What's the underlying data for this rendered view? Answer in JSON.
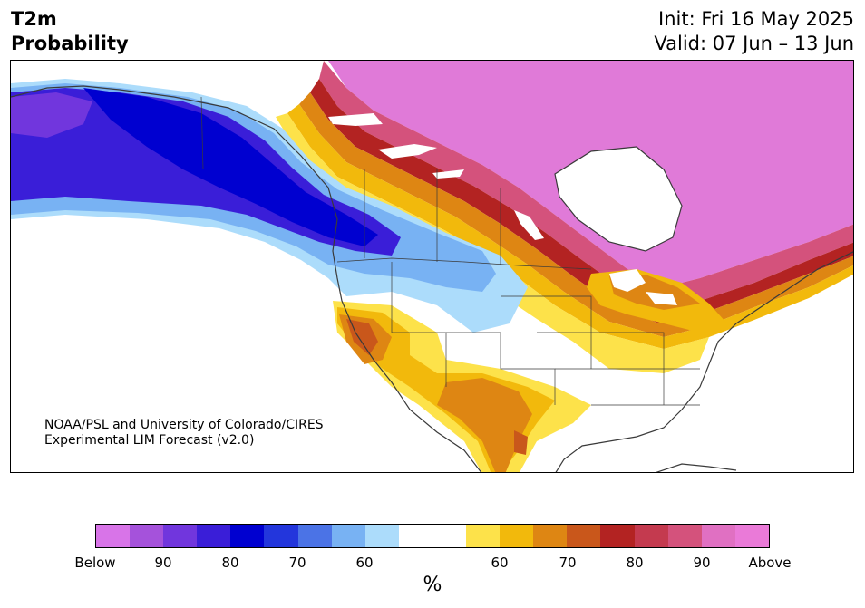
{
  "header": {
    "variable": "T2m",
    "subtitle": "Probability",
    "init": "Init: Fri 16 May 2025",
    "valid": "Valid: 07 Jun – 13 Jun"
  },
  "credit": {
    "line1": "NOAA/PSL and University of Colorado/CIRES",
    "line2": "Experimental LIM Forecast (v2.0)"
  },
  "colorbar": {
    "colors": [
      "#d874e8",
      "#a552db",
      "#7136dd",
      "#3a1ed8",
      "#0000d0",
      "#2336dc",
      "#4b73e6",
      "#78b2f3",
      "#acdcfb",
      "#ffffff",
      "#ffffff",
      "#fde24a",
      "#f2b90c",
      "#de8613",
      "#c9571b",
      "#b32322",
      "#c43a4f",
      "#d4527c",
      "#e070c2",
      "#ea7ad8"
    ],
    "tick_labels": [
      "Below",
      "90",
      "80",
      "70",
      "60",
      "60",
      "70",
      "80",
      "90",
      "Above"
    ],
    "unit": "%"
  },
  "map": {
    "projection": "North America, Lambert-style",
    "colors": {
      "above_max": "#e07ad8",
      "above_high": "#d4527c",
      "above_mid": "#b32322",
      "above_orange": "#de8613",
      "above_gold": "#f2b90c",
      "above_low": "#fde24a",
      "below_low": "#acdcfb",
      "below_mid": "#78b2f3",
      "below_high": "#3a1ed8",
      "below_max": "#0000d0",
      "coast": "#3a3a3a"
    }
  }
}
